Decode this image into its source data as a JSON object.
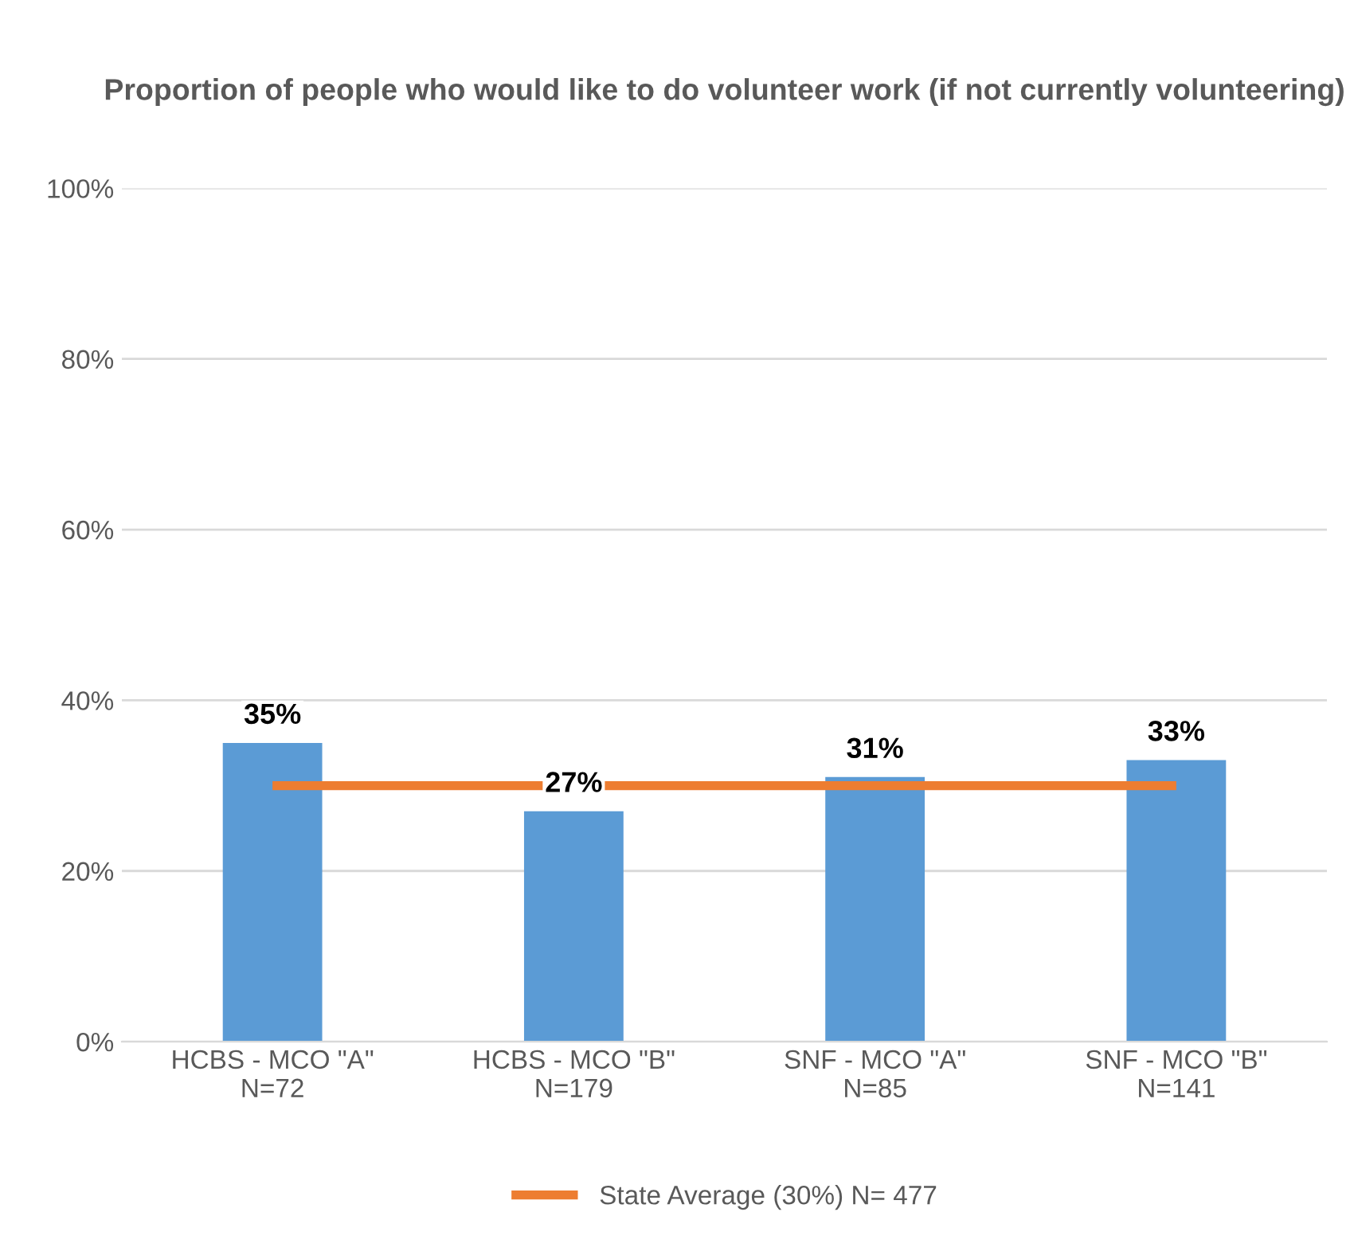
{
  "chart_data": {
    "type": "bar",
    "title": "Proportion of people who would like to do volunteer work (if not currently volunteering)",
    "categories": [
      "HCBS - MCO \"A\"\nN=72",
      "HCBS - MCO \"B\"\nN=179",
      "SNF - MCO \"A\"\nN=85",
      "SNF - MCO \"B\"\nN=141"
    ],
    "series": [
      {
        "color": "#5b9bd5",
        "values": [
          35,
          27,
          31,
          33
        ],
        "value_labels": [
          "35%",
          "27%",
          "31%",
          "33%"
        ]
      },
      {
        "type": "line",
        "name": "State Average (30%) N= 477",
        "color": "#ed7d31",
        "values": [
          30,
          30,
          30,
          30
        ]
      }
    ],
    "ylim": [
      0,
      100
    ],
    "yticks": [
      {
        "value": 0,
        "label": "0%"
      },
      {
        "value": 20,
        "label": "20%"
      },
      {
        "value": 40,
        "label": "40%"
      },
      {
        "value": 60,
        "label": "60%"
      },
      {
        "value": 80,
        "label": "80%"
      },
      {
        "value": 100,
        "label": "100%"
      }
    ],
    "grid": "y",
    "legend": "bottom"
  }
}
